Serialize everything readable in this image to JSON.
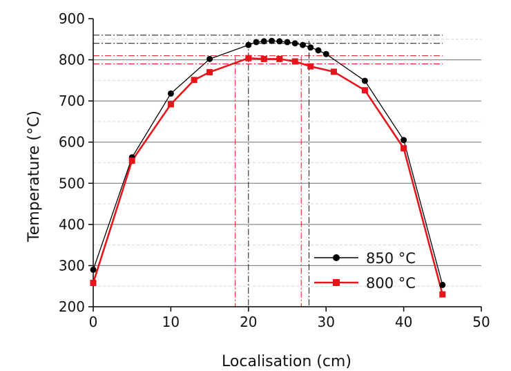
{
  "chart_data": {
    "type": "line",
    "xlabel": "Localisation (cm)",
    "ylabel": "Temperature (°C)",
    "xlim": [
      0,
      50
    ],
    "ylim": [
      200,
      900
    ],
    "x_ticks": [
      0,
      10,
      20,
      30,
      40,
      50
    ],
    "y_ticks": [
      200,
      300,
      400,
      500,
      600,
      700,
      800,
      900
    ],
    "grid": "horizontal",
    "legend_position": "bottom-right",
    "series": [
      {
        "name": "850 °C",
        "color": "#000000",
        "marker": "circle",
        "x": [
          0,
          5,
          10,
          15,
          20,
          21,
          22,
          23,
          24,
          25,
          26,
          27,
          28,
          29,
          30,
          35,
          40,
          45
        ],
        "y": [
          290,
          563,
          718,
          802,
          836,
          843,
          845,
          846,
          845,
          843,
          840,
          836,
          830,
          823,
          814,
          749,
          605,
          253
        ]
      },
      {
        "name": "800 °C",
        "color": "#e8141c",
        "marker": "square",
        "x": [
          0,
          5,
          10,
          13,
          15,
          20,
          22,
          24,
          26,
          28,
          31,
          35,
          40,
          45
        ],
        "y": [
          258,
          555,
          692,
          751,
          770,
          804,
          802,
          802,
          796,
          784,
          771,
          726,
          585,
          230
        ]
      }
    ],
    "reference_lines": {
      "black_horizontal": [
        840,
        860
      ],
      "black_vertical": [
        20,
        27.8
      ],
      "red_horizontal": [
        790,
        810
      ],
      "red_vertical": [
        18.3,
        26.8
      ]
    }
  }
}
